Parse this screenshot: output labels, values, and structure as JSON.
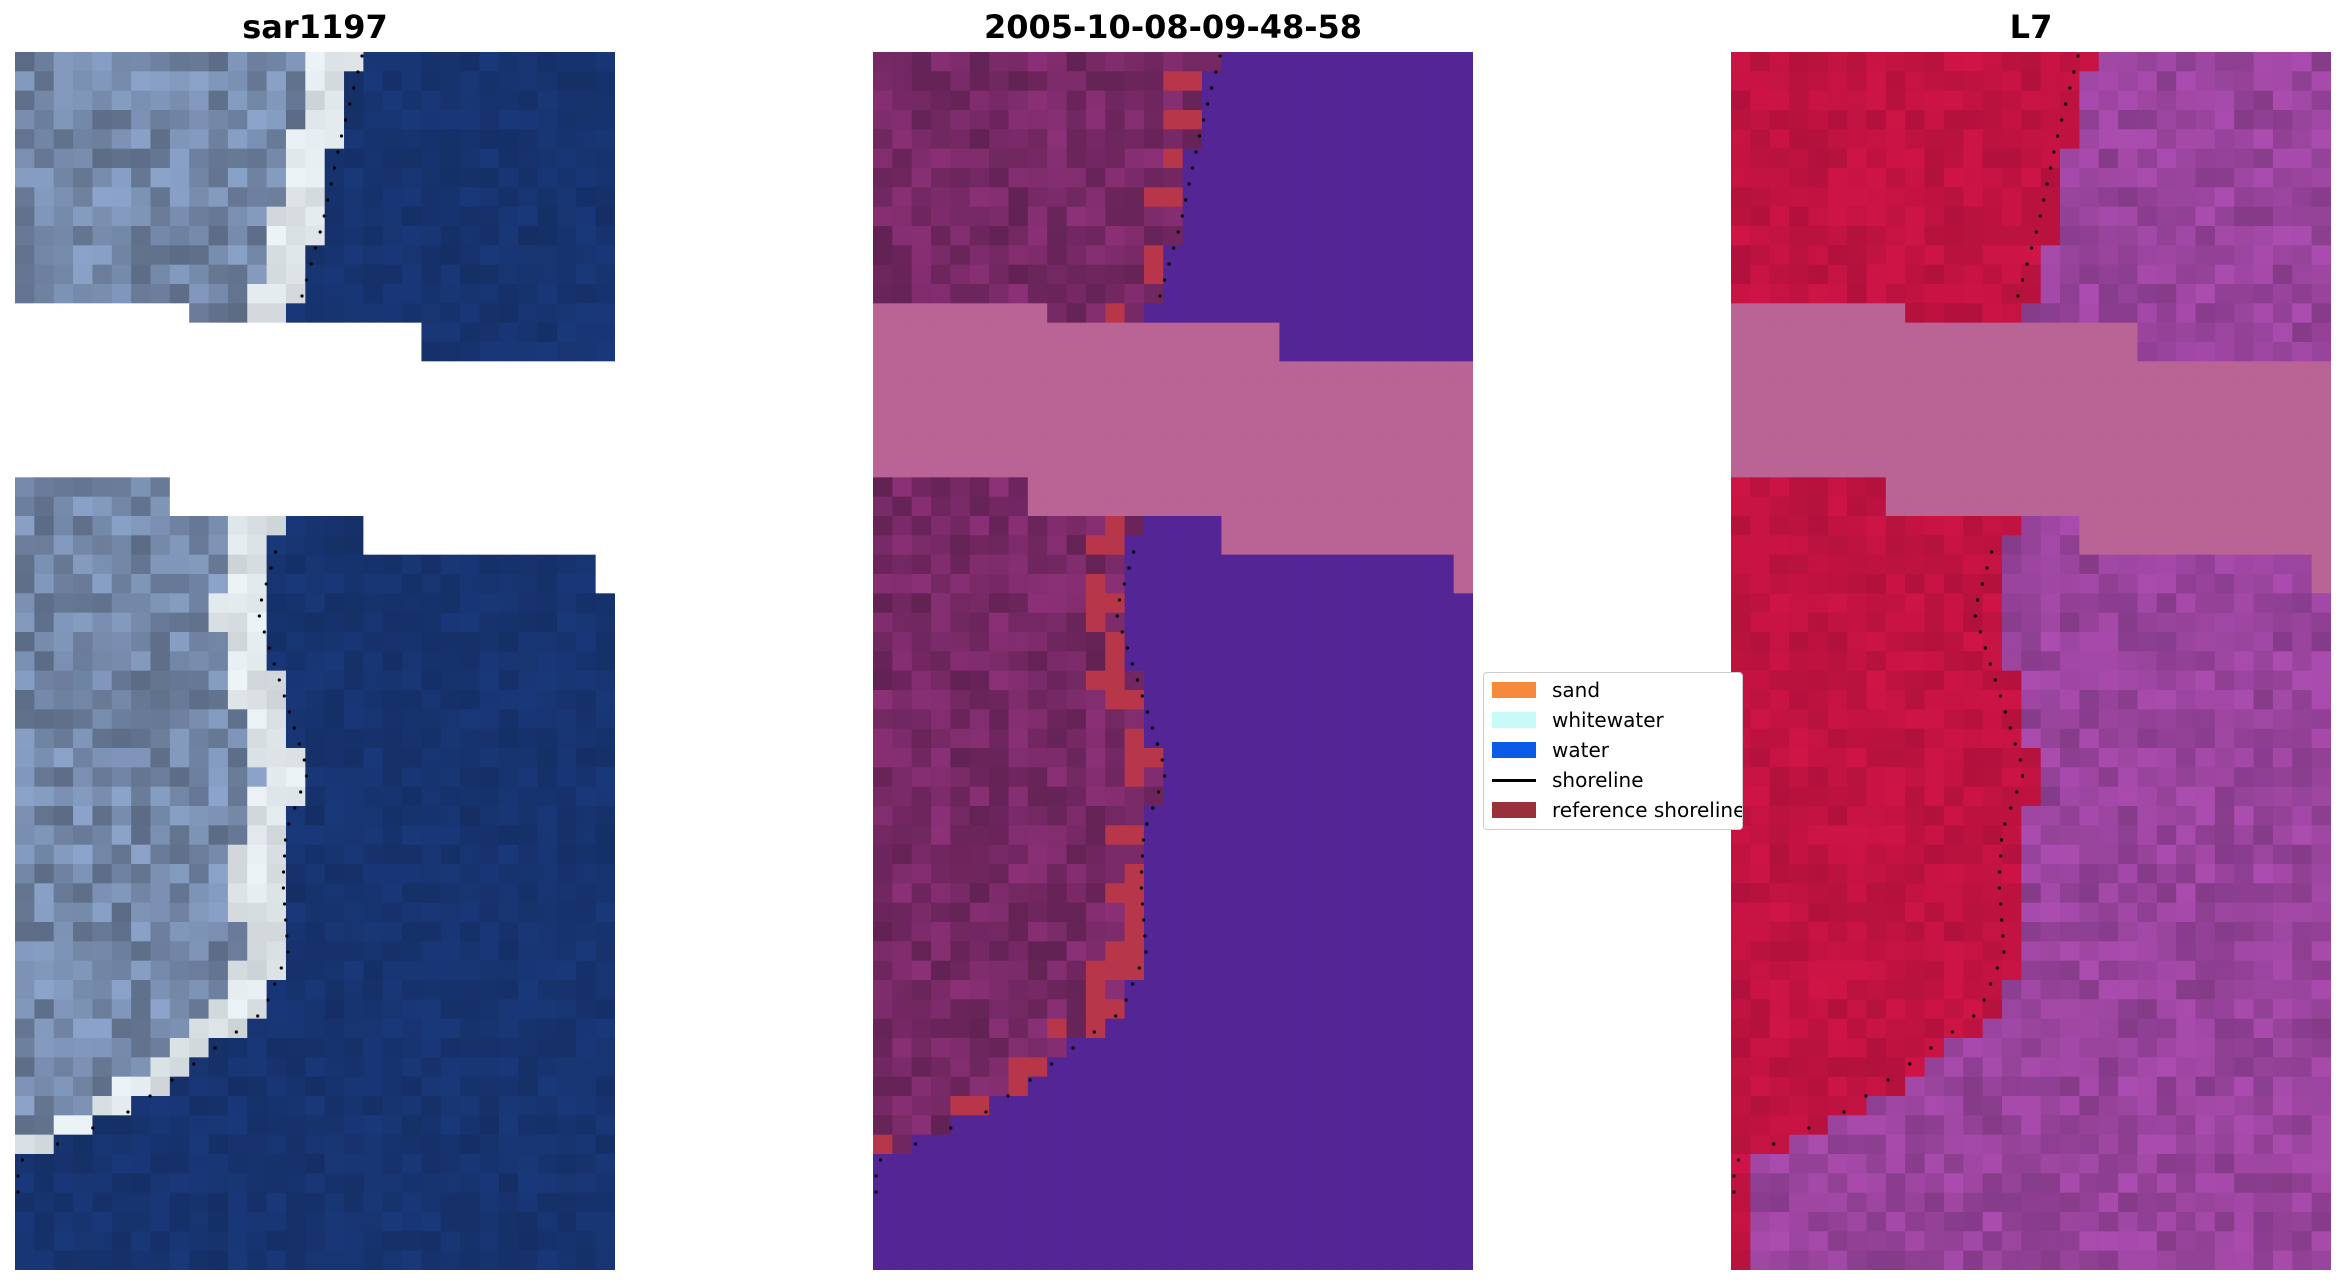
{
  "panels": [
    {
      "title": "sar1197",
      "style": "rgb"
    },
    {
      "title": "2005-10-08-09-48-58",
      "style": "classified"
    },
    {
      "title": "L7",
      "style": "index"
    }
  ],
  "legend": {
    "items": [
      {
        "label": "sand",
        "color": "#f7893a",
        "kind": "patch"
      },
      {
        "label": "whitewater",
        "color": "#c8fbf8",
        "kind": "patch"
      },
      {
        "label": "water",
        "color": "#0b5be6",
        "kind": "patch"
      },
      {
        "label": "shoreline",
        "color": "#000000",
        "kind": "line"
      },
      {
        "label": "reference shoreline",
        "color": "#99303a",
        "kind": "patch"
      }
    ]
  },
  "colors": {
    "rgb_water": "#17336f",
    "rgb_land": "#7a8fb1",
    "rgb_whitewater": "#e9f0f4",
    "class_water": "#532595",
    "class_land": "#7a2a68",
    "class_sand": "#b8364a",
    "class_cloud": "#ba6395",
    "index_land": "#c51343",
    "index_water": "#9c45a0",
    "index_cloud": "#ba6395",
    "shoreline_dots": "#000000"
  }
}
